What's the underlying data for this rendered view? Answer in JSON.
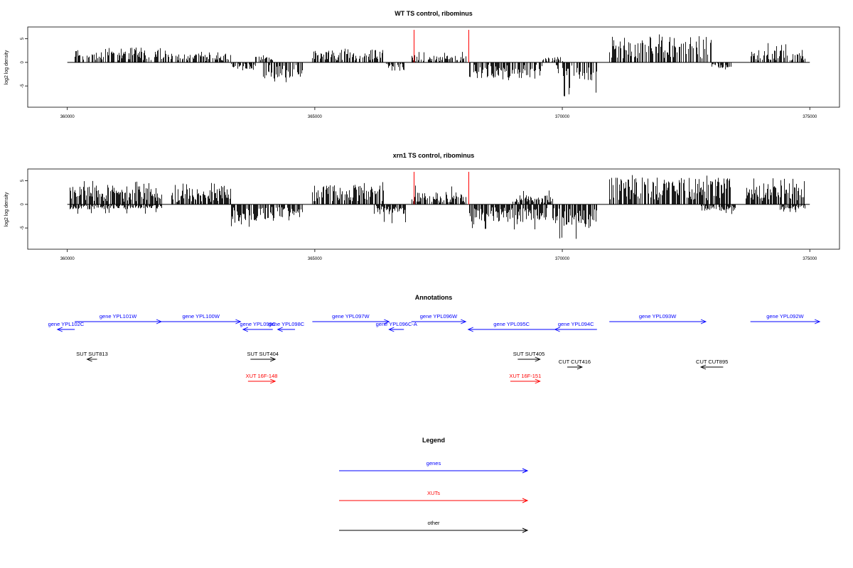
{
  "chart_data": [
    {
      "type": "bar",
      "title": "WT TS control, ribominus",
      "ylabel": "log2 log density",
      "xlim": [
        359200,
        375600
      ],
      "ylim": [
        -9.5,
        7.5
      ],
      "x_ticks": [
        360000,
        365000,
        370000,
        375000
      ],
      "y_ticks": [
        -5,
        0,
        5
      ],
      "baseline_range": [
        360000,
        375000
      ],
      "highlight_lines": [
        367000,
        368100
      ],
      "highlight_color": "#ff0000",
      "bar_color": "#000000",
      "profile_seed": 11,
      "density": 0.7,
      "segments": [
        {
          "start": 360150,
          "end": 361900,
          "sign": 1,
          "mean": 1.8,
          "peak": 3.2
        },
        {
          "start": 361900,
          "end": 363300,
          "sign": 1,
          "mean": 1.1,
          "peak": 2.5
        },
        {
          "start": 363300,
          "end": 363800,
          "sign": -1,
          "mean": 0.8,
          "peak": 1.7
        },
        {
          "start": 363800,
          "end": 364150,
          "sign": 1,
          "mean": 0.7,
          "peak": 1.5
        },
        {
          "start": 363950,
          "end": 364750,
          "sign": -1,
          "mean": 2.0,
          "peak": 4.3
        },
        {
          "start": 364950,
          "end": 366400,
          "sign": 1,
          "mean": 1.6,
          "peak": 3.0
        },
        {
          "start": 366400,
          "end": 366800,
          "sign": -1,
          "mean": 1.0,
          "peak": 4.3
        },
        {
          "start": 366950,
          "end": 368050,
          "sign": 1,
          "mean": 0.9,
          "peak": 2.6
        },
        {
          "start": 368100,
          "end": 369600,
          "sign": -1,
          "mean": 1.9,
          "peak": 4.1
        },
        {
          "start": 369600,
          "end": 370000,
          "sign": 1,
          "mean": 0.7,
          "peak": 2.6
        },
        {
          "start": 369850,
          "end": 370700,
          "sign": -1,
          "mean": 2.2,
          "peak": 7.2
        },
        {
          "start": 370950,
          "end": 373000,
          "sign": 1,
          "mean": 3.2,
          "peak": 6.0
        },
        {
          "start": 373000,
          "end": 373400,
          "sign": -1,
          "mean": 0.7,
          "peak": 1.5
        },
        {
          "start": 373800,
          "end": 374900,
          "sign": 1,
          "mean": 1.5,
          "peak": 4.2
        }
      ]
    },
    {
      "type": "bar",
      "title": "xrn1 TS control, ribominus",
      "ylabel": "log2 log density",
      "xlim": [
        359200,
        375600
      ],
      "ylim": [
        -9.5,
        7.5
      ],
      "x_ticks": [
        360000,
        365000,
        370000,
        375000
      ],
      "y_ticks": [
        -5,
        0,
        5
      ],
      "baseline_range": [
        360000,
        375000
      ],
      "highlight_lines": [
        367000,
        368100
      ],
      "highlight_color": "#ff0000",
      "bar_color": "#000000",
      "profile_seed": 29,
      "density": 0.85,
      "segments": [
        {
          "start": 360050,
          "end": 361900,
          "sign": 1,
          "mean": 2.2,
          "peak": 5.0
        },
        {
          "start": 360050,
          "end": 361900,
          "sign": -1,
          "mean": 0.6,
          "peak": 2.0
        },
        {
          "start": 362100,
          "end": 363300,
          "sign": 1,
          "mean": 2.0,
          "peak": 4.6
        },
        {
          "start": 363300,
          "end": 364750,
          "sign": -1,
          "mean": 2.1,
          "peak": 5.0
        },
        {
          "start": 364950,
          "end": 366400,
          "sign": 1,
          "mean": 2.4,
          "peak": 4.8
        },
        {
          "start": 366200,
          "end": 366850,
          "sign": -1,
          "mean": 1.2,
          "peak": 4.3
        },
        {
          "start": 366950,
          "end": 368050,
          "sign": 1,
          "mean": 1.5,
          "peak": 4.4
        },
        {
          "start": 368100,
          "end": 369700,
          "sign": -1,
          "mean": 2.2,
          "peak": 5.5
        },
        {
          "start": 369000,
          "end": 369800,
          "sign": 1,
          "mean": 1.1,
          "peak": 3.0
        },
        {
          "start": 369800,
          "end": 370700,
          "sign": -1,
          "mean": 3.0,
          "peak": 8.6
        },
        {
          "start": 370950,
          "end": 373400,
          "sign": 1,
          "mean": 3.3,
          "peak": 6.3
        },
        {
          "start": 372800,
          "end": 373500,
          "sign": -1,
          "mean": 0.8,
          "peak": 2.2
        },
        {
          "start": 373700,
          "end": 374900,
          "sign": 1,
          "mean": 2.6,
          "peak": 5.6
        },
        {
          "start": 374400,
          "end": 374900,
          "sign": -1,
          "mean": 0.7,
          "peak": 1.8
        }
      ]
    }
  ],
  "annotations": {
    "title": "Annotations",
    "colors": {
      "gene": "#0000ff",
      "xut": "#ff0000",
      "other": "#000000"
    },
    "items": [
      {
        "label": "gene YPL101W",
        "kind": "gene",
        "start": 360150,
        "end": 361900,
        "row": 0,
        "dir": "right"
      },
      {
        "label": "gene YPL102C",
        "kind": "gene",
        "start": 359800,
        "end": 360150,
        "row": 1,
        "dir": "left"
      },
      {
        "label": "gene YPL100W",
        "kind": "gene",
        "start": 361900,
        "end": 363500,
        "row": 0,
        "dir": "right"
      },
      {
        "label": "gene YPL099C",
        "kind": "gene",
        "start": 363550,
        "end": 364150,
        "row": 1,
        "dir": "left"
      },
      {
        "label": "gene YPL098C",
        "kind": "gene",
        "start": 364250,
        "end": 364600,
        "row": 1,
        "dir": "left"
      },
      {
        "label": "gene YPL097W",
        "kind": "gene",
        "start": 364950,
        "end": 366500,
        "row": 0,
        "dir": "right"
      },
      {
        "label": "gene YPL096C-A",
        "kind": "gene",
        "start": 366500,
        "end": 366800,
        "row": 1,
        "dir": "left"
      },
      {
        "label": "gene YPL096W",
        "kind": "gene",
        "start": 366950,
        "end": 368050,
        "row": 0,
        "dir": "right"
      },
      {
        "label": "gene YPL095C",
        "kind": "gene",
        "start": 368100,
        "end": 369850,
        "row": 1,
        "dir": "left"
      },
      {
        "label": "gene YPL094C",
        "kind": "gene",
        "start": 369850,
        "end": 370700,
        "row": 1,
        "dir": "left"
      },
      {
        "label": "gene YPL093W",
        "kind": "gene",
        "start": 370950,
        "end": 372900,
        "row": 0,
        "dir": "right"
      },
      {
        "label": "gene YPL092W",
        "kind": "gene",
        "start": 373800,
        "end": 375200,
        "row": 0,
        "dir": "right"
      },
      {
        "label": "SUT SUT813",
        "kind": "other",
        "start": 360400,
        "end": 360600,
        "row": 2,
        "dir": "left"
      },
      {
        "label": "SUT SUT404",
        "kind": "other",
        "start": 363700,
        "end": 364200,
        "row": 2,
        "dir": "right"
      },
      {
        "label": "SUT SUT405",
        "kind": "other",
        "start": 369100,
        "end": 369550,
        "row": 2,
        "dir": "right"
      },
      {
        "label": "CUT CUT416",
        "kind": "other",
        "start": 370100,
        "end": 370400,
        "row": 3,
        "dir": "right"
      },
      {
        "label": "CUT CUT895",
        "kind": "other",
        "start": 372800,
        "end": 373250,
        "row": 3,
        "dir": "left"
      },
      {
        "label": "XUT 16F-148",
        "kind": "xut",
        "start": 363650,
        "end": 364200,
        "row": 4,
        "dir": "right"
      },
      {
        "label": "XUT 16F-151",
        "kind": "xut",
        "start": 368950,
        "end": 369550,
        "row": 4,
        "dir": "right"
      }
    ]
  },
  "legend": {
    "title": "Legend",
    "items": [
      {
        "label": "genes",
        "color": "#0000ff"
      },
      {
        "label": "XUTs",
        "color": "#ff0000"
      },
      {
        "label": "other",
        "color": "#000000"
      }
    ]
  }
}
